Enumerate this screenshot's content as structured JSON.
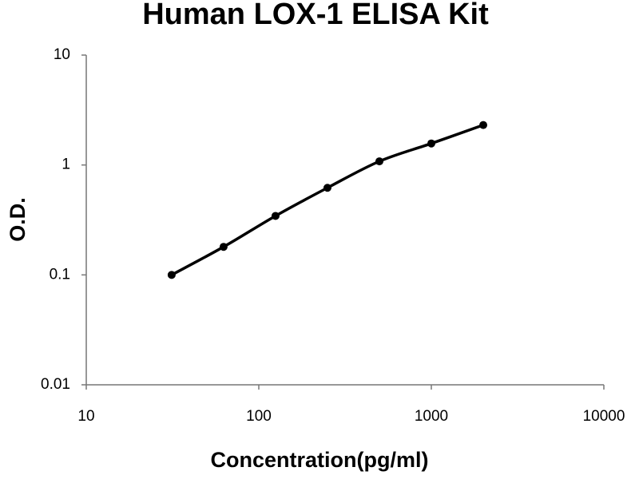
{
  "chart_data": {
    "type": "line",
    "title": "Human LOX-1 ELISA Kit",
    "x_label": "Concentration(pg/ml)",
    "y_label": "O.D.",
    "x": [
      31.25,
      62.5,
      125,
      250,
      500,
      1000,
      2000
    ],
    "series": [
      {
        "color": "#000000",
        "values": [
          0.1,
          0.18,
          0.344,
          0.62,
          1.08,
          1.57,
          2.31
        ]
      }
    ],
    "xlim": [
      10,
      10000
    ],
    "ylim": [
      0.01,
      10
    ],
    "xticks": [
      10,
      100,
      1000,
      10000
    ],
    "yticks": [
      0.01,
      0.1,
      1,
      10
    ],
    "xlog": true,
    "ylog": true,
    "grid": false
  }
}
